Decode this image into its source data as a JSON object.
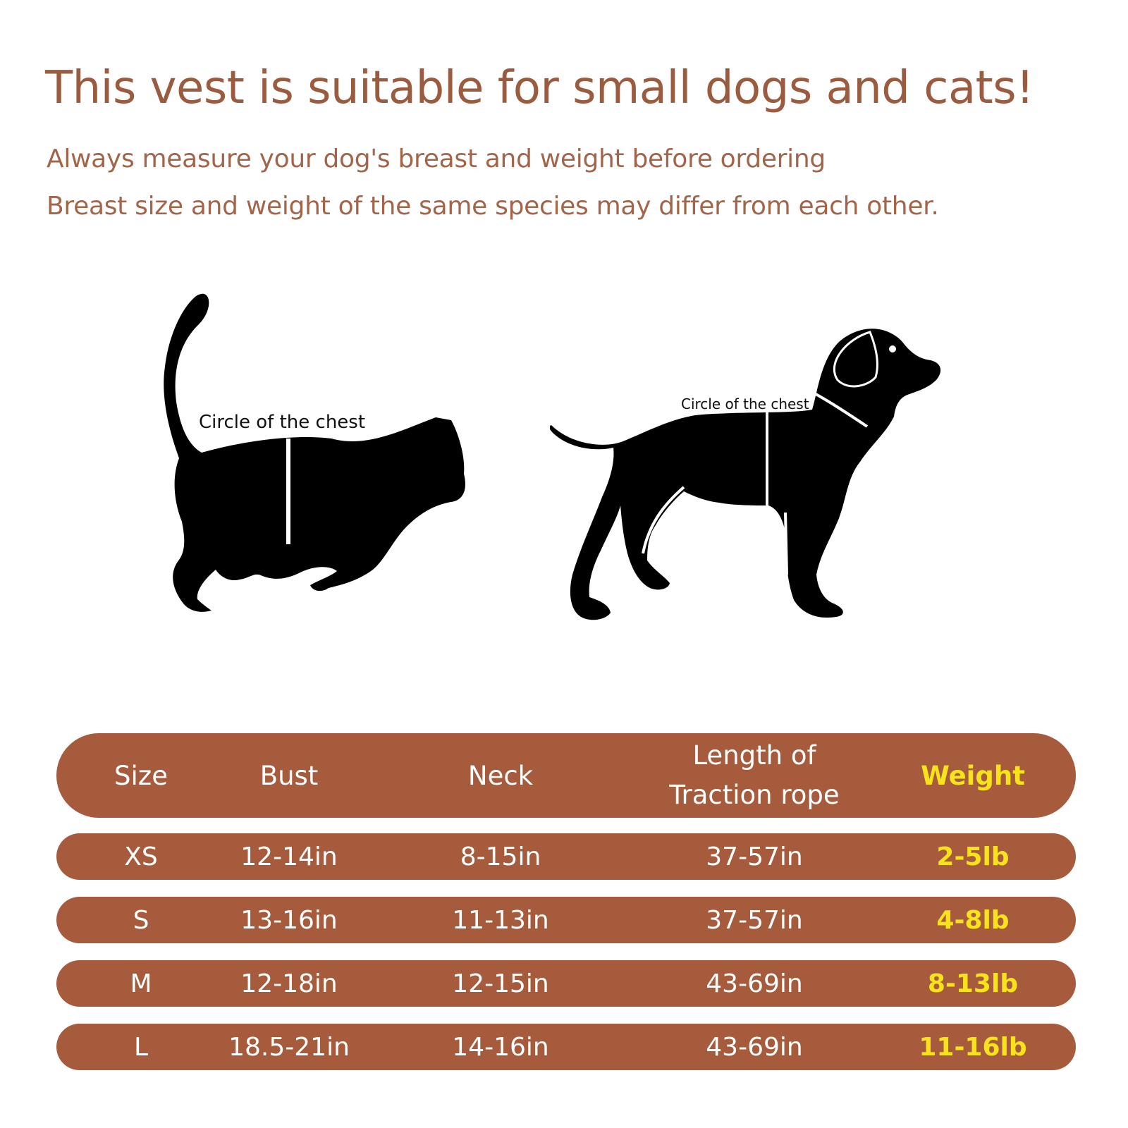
{
  "heading": {
    "title": "This vest is suitable for small dogs and cats!",
    "line1": "Always measure your dog's breast and weight before ordering",
    "line2": "Breast size and weight of the same species may differ from each other."
  },
  "figures": {
    "cat_label": "Circle of the chest",
    "dog_label": "Circle of the chest"
  },
  "table": {
    "headers": {
      "size": "Size",
      "bust": "Bust",
      "neck": "Neck",
      "rope_line1": "Length of",
      "rope_line2": "Traction rope",
      "weight": "Weight"
    },
    "rows": [
      {
        "size": "XS",
        "bust": "12-14in",
        "neck": "8-15in",
        "rope": "37-57in",
        "weight": "2-5lb"
      },
      {
        "size": "S",
        "bust": "13-16in",
        "neck": "11-13in",
        "rope": "37-57in",
        "weight": "4-8lb"
      },
      {
        "size": "M",
        "bust": "12-18in",
        "neck": "12-15in",
        "rope": "43-69in",
        "weight": "8-13lb"
      },
      {
        "size": "L",
        "bust": "18.5-21in",
        "neck": "14-16in",
        "rope": "43-69in",
        "weight": "11-16lb"
      }
    ]
  },
  "colors": {
    "accent": "#a65b3c",
    "heading_text": "#9a5b3f",
    "weight_text": "#f6e31b"
  }
}
